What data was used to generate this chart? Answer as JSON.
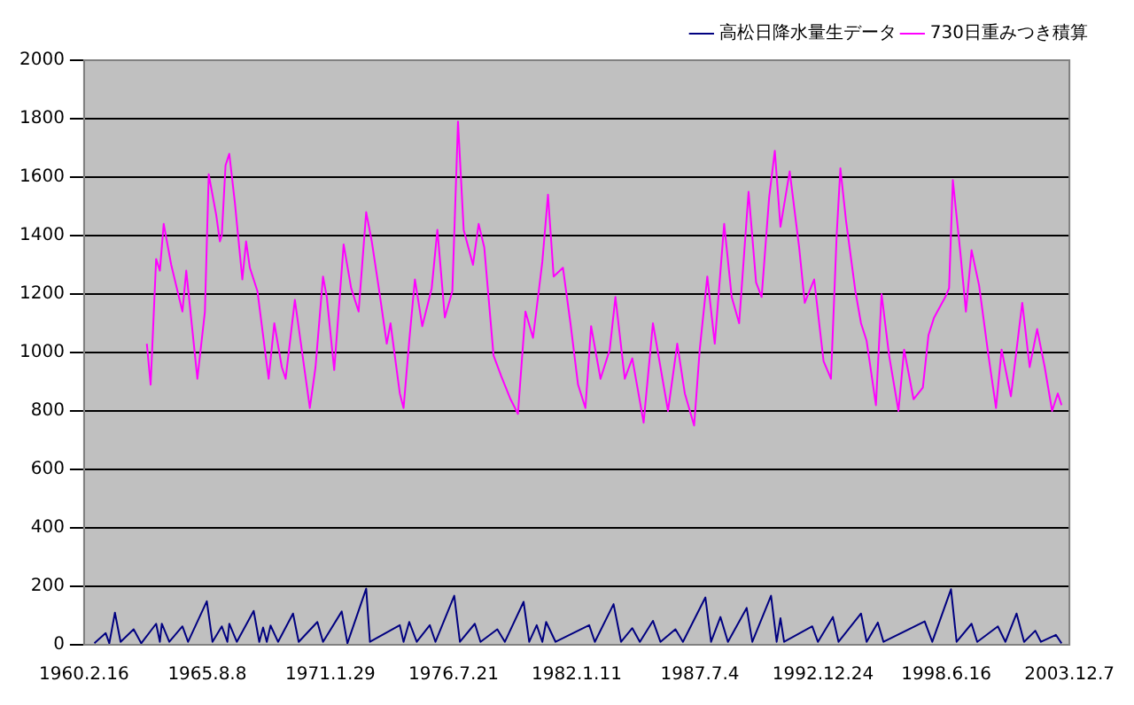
{
  "chart_data": {
    "type": "line",
    "ylim": [
      0,
      2000
    ],
    "yticks": [
      0,
      200,
      400,
      600,
      800,
      1000,
      1200,
      1400,
      1600,
      1800,
      2000
    ],
    "xlim": [
      "1960-02-16",
      "2003-12-07"
    ],
    "xticks": [
      {
        "value": "1960-02-16",
        "label": "1960.2.16"
      },
      {
        "value": "1965-08-08",
        "label": "1965.8.8"
      },
      {
        "value": "1971-01-29",
        "label": "1971.1.29"
      },
      {
        "value": "1976-07-21",
        "label": "1976.7.21"
      },
      {
        "value": "1982-01-11",
        "label": "1982.1.11"
      },
      {
        "value": "1987-07-04",
        "label": "1987.7.4"
      },
      {
        "value": "1992-12-24",
        "label": "1992.12.24"
      },
      {
        "value": "1998-06-16",
        "label": "1998.6.16"
      },
      {
        "value": "2003-12-07",
        "label": "2003.12.7"
      }
    ],
    "grid": "y",
    "legend": "top right",
    "marker": "none",
    "line_style": "solid",
    "series": [
      {
        "name": "高松日降水量生データ",
        "color": "#000080",
        "x": [
          "1960-08",
          "1961-02",
          "1961-04",
          "1961-07",
          "1961-10",
          "1962-05",
          "1962-09",
          "1963-05",
          "1963-07",
          "1963-08",
          "1963-12",
          "1964-07",
          "1964-10",
          "1965-08",
          "1965-11",
          "1966-04",
          "1966-07",
          "1966-08",
          "1966-12",
          "1967-09",
          "1967-12",
          "1968-02",
          "1968-04",
          "1968-06",
          "1968-10",
          "1969-06",
          "1969-09",
          "1970-07",
          "1970-10",
          "1971-08",
          "1971-11",
          "1972-09",
          "1972-11",
          "1974-03",
          "1974-05",
          "1974-08",
          "1974-12",
          "1975-07",
          "1975-10",
          "1976-08",
          "1976-11",
          "1977-07",
          "1977-10",
          "1978-07",
          "1978-11",
          "1979-09",
          "1979-12",
          "1980-04",
          "1980-07",
          "1980-09",
          "1981-02",
          "1982-08",
          "1982-11",
          "1983-09",
          "1984-01",
          "1984-07",
          "1984-11",
          "1985-06",
          "1985-10",
          "1986-06",
          "1986-10",
          "1987-10",
          "1988-01",
          "1988-06",
          "1988-10",
          "1989-08",
          "1989-11",
          "1990-09",
          "1990-12",
          "1991-02",
          "1991-04",
          "1992-07",
          "1992-10",
          "1993-06",
          "1993-09",
          "1994-09",
          "1994-12",
          "1995-06",
          "1995-09",
          "1997-07",
          "1997-11",
          "1998-09",
          "1998-12",
          "1999-08",
          "1999-11",
          "2000-10",
          "2001-02",
          "2001-08",
          "2001-12",
          "2002-06",
          "2002-09",
          "2003-05",
          "2003-08"
        ],
        "values": [
          5,
          40,
          5,
          110,
          10,
          53,
          5,
          72,
          10,
          72,
          10,
          63,
          10,
          149,
          10,
          63,
          10,
          72,
          10,
          116,
          10,
          59,
          10,
          66,
          10,
          107,
          10,
          78,
          10,
          114,
          5,
          192,
          10,
          67,
          10,
          78,
          10,
          67,
          10,
          168,
          10,
          72,
          10,
          53,
          10,
          147,
          10,
          67,
          10,
          78,
          10,
          67,
          10,
          139,
          10,
          57,
          10,
          82,
          10,
          53,
          10,
          162,
          10,
          95,
          10,
          126,
          10,
          168,
          10,
          91,
          10,
          63,
          10,
          95,
          10,
          107,
          10,
          76,
          10,
          80,
          10,
          190,
          10,
          72,
          10,
          63,
          10,
          107,
          10,
          48,
          10,
          34,
          5
        ]
      },
      {
        "name": "730日重みつき積算",
        "color": "#ff00ff",
        "x": [
          "1962-12",
          "1963-02",
          "1963-05",
          "1963-07",
          "1963-09",
          "1964-01",
          "1964-07",
          "1964-09",
          "1965-03",
          "1965-07",
          "1965-09",
          "1966-01",
          "1966-03",
          "1966-04",
          "1966-06",
          "1966-08",
          "1966-11",
          "1967-03",
          "1967-05",
          "1967-07",
          "1967-11",
          "1968-03",
          "1968-05",
          "1968-08",
          "1968-12",
          "1969-02",
          "1969-07",
          "1969-10",
          "1970-03",
          "1970-06",
          "1970-10",
          "1970-12",
          "1971-04",
          "1971-09",
          "1972-01",
          "1972-05",
          "1972-09",
          "1972-12",
          "1973-04",
          "1973-08",
          "1973-10",
          "1974-03",
          "1974-05",
          "1974-08",
          "1974-11",
          "1975-03",
          "1975-08",
          "1975-11",
          "1976-03",
          "1976-07",
          "1976-10",
          "1977-01",
          "1977-06",
          "1977-09",
          "1977-12",
          "1978-05",
          "1978-09",
          "1979-02",
          "1979-06",
          "1979-10",
          "1980-02",
          "1980-07",
          "1980-10",
          "1981-01",
          "1981-06",
          "1981-10",
          "1982-02",
          "1982-06",
          "1982-09",
          "1983-02",
          "1983-07",
          "1983-10",
          "1984-03",
          "1984-07",
          "1985-01",
          "1985-06",
          "1986-02",
          "1986-07",
          "1986-11",
          "1987-04",
          "1987-07",
          "1987-11",
          "1988-03",
          "1988-08",
          "1988-12",
          "1989-04",
          "1989-09",
          "1990-01",
          "1990-04",
          "1990-08",
          "1990-11",
          "1991-02",
          "1991-07",
          "1991-12",
          "1992-03",
          "1992-08",
          "1993-01",
          "1993-05",
          "1993-08",
          "1993-10",
          "1994-01",
          "1994-06",
          "1994-09",
          "1994-12",
          "1995-05",
          "1995-08",
          "1995-12",
          "1996-05",
          "1996-08",
          "1997-01",
          "1997-06",
          "1997-09",
          "1997-12",
          "1998-06",
          "1998-08",
          "1998-10",
          "1999-02",
          "1999-05",
          "1999-08",
          "1999-12",
          "2000-05",
          "2000-09",
          "2000-12",
          "2001-05",
          "2001-11",
          "2002-03",
          "2002-07",
          "2002-11",
          "2003-03",
          "2003-06",
          "2003-08"
        ],
        "values": [
          1030,
          890,
          1320,
          1280,
          1440,
          1300,
          1140,
          1280,
          910,
          1140,
          1610,
          1470,
          1380,
          1400,
          1640,
          1680,
          1510,
          1250,
          1380,
          1290,
          1210,
          1010,
          910,
          1100,
          950,
          910,
          1180,
          1040,
          810,
          950,
          1260,
          1190,
          940,
          1370,
          1220,
          1140,
          1480,
          1380,
          1210,
          1030,
          1100,
          860,
          810,
          1040,
          1250,
          1090,
          1220,
          1420,
          1120,
          1210,
          1790,
          1420,
          1300,
          1440,
          1360,
          990,
          920,
          840,
          790,
          1140,
          1050,
          1310,
          1540,
          1260,
          1290,
          1100,
          890,
          810,
          1090,
          910,
          1010,
          1190,
          910,
          980,
          760,
          1100,
          800,
          1030,
          860,
          750,
          1010,
          1260,
          1030,
          1440,
          1190,
          1100,
          1550,
          1240,
          1190,
          1530,
          1690,
          1430,
          1620,
          1360,
          1170,
          1250,
          970,
          910,
          1400,
          1630,
          1450,
          1210,
          1100,
          1040,
          820,
          1200,
          990,
          800,
          1010,
          840,
          880,
          1060,
          1120,
          1190,
          1220,
          1590,
          1340,
          1140,
          1350,
          1230,
          990,
          810,
          1010,
          850,
          1170,
          950,
          1080,
          950,
          800,
          860,
          820
        ]
      }
    ]
  }
}
